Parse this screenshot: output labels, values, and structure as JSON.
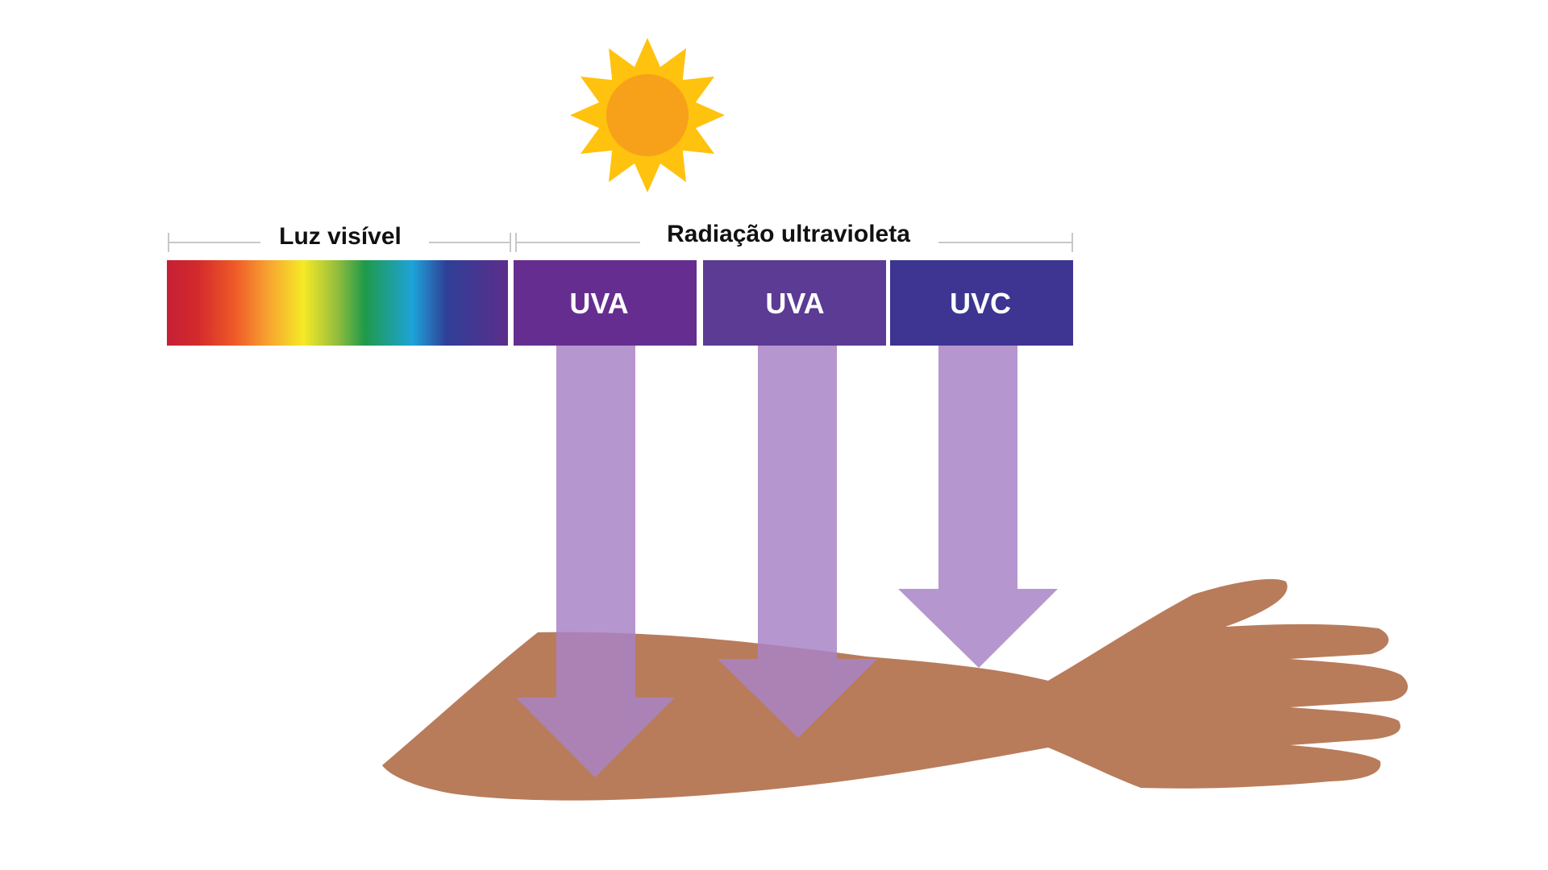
{
  "diagram": {
    "visible_label": "Luz visível",
    "uv_label": "Radiação ultravioleta",
    "bands": [
      {
        "label": "UVA",
        "color": "#662d91"
      },
      {
        "label": "UVA",
        "color": "#5b3b93"
      },
      {
        "label": "UVC",
        "color": "#3e3592"
      }
    ],
    "colors": {
      "arrow": "#a984c6",
      "arm": "#b87c5b",
      "sun_rays": "#ffc20e",
      "sun_core": "#f7a11a",
      "bracket": "#c8c8c8"
    },
    "icons": [
      "sun-icon",
      "arm-illustration",
      "down-arrow"
    ]
  }
}
